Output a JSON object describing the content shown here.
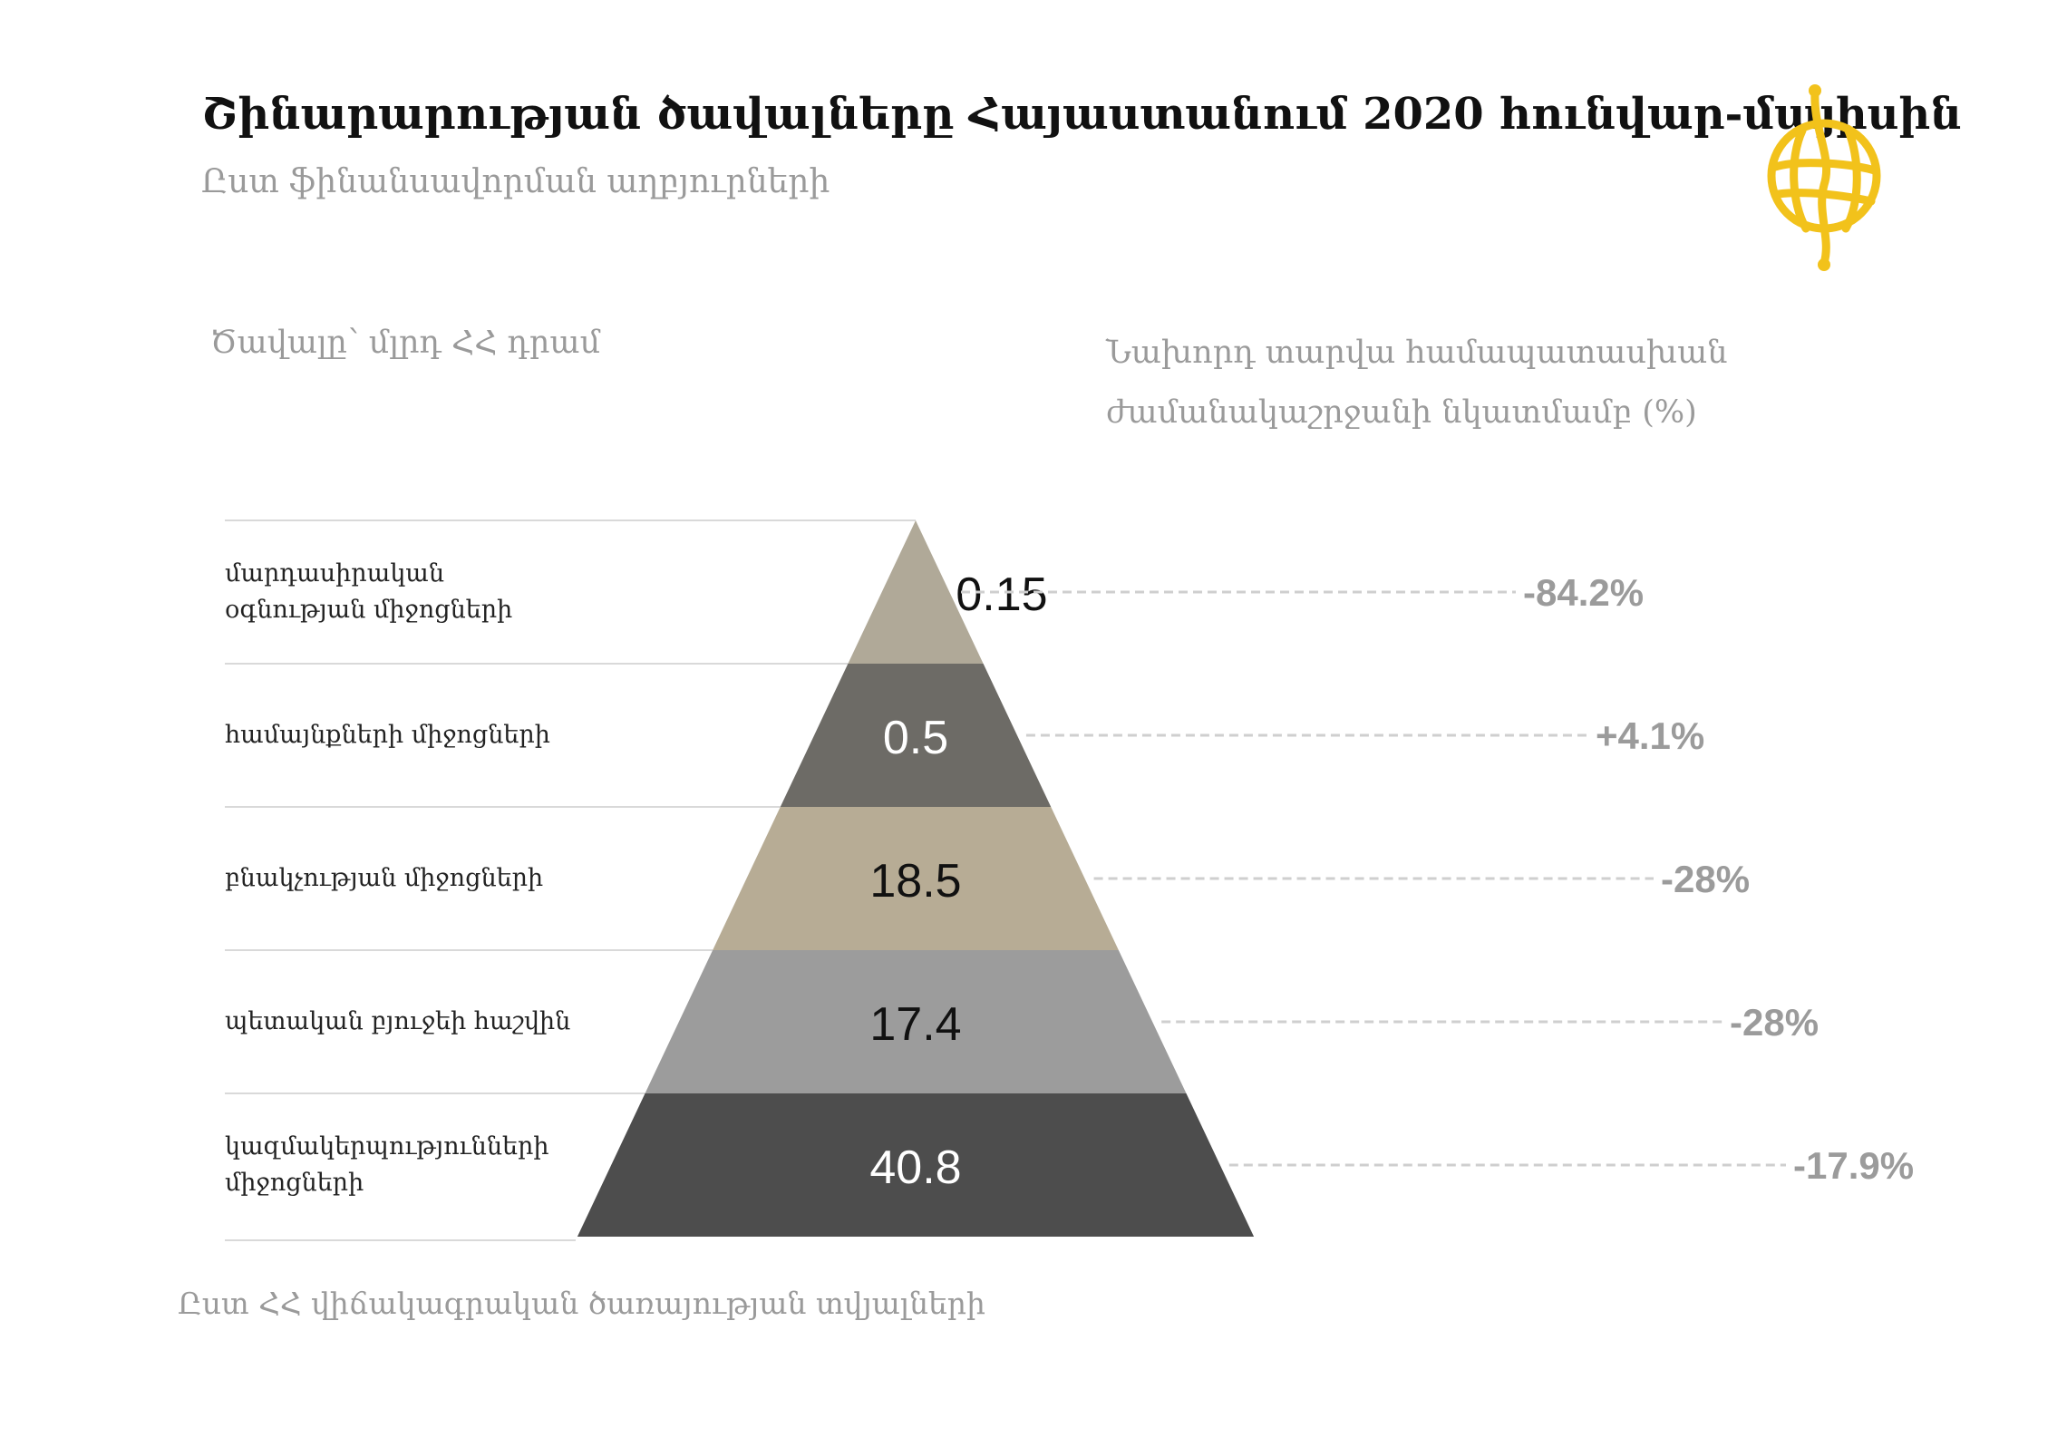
{
  "title": "Շինարարության ծավալները Հայաստանում 2020 հունվար-մայիսին",
  "subtitle": "Ըստ ֆինանսավորման աղբյուրների",
  "unit_label": "Ծավալը՝ մլրդ ՀՀ դրամ",
  "change_label": "Նախորդ տարվա համապատասխան ժամանակաշրջանի նկատմամբ (%)",
  "source": "Ըստ ՀՀ վիճակագրական ծառայության տվյալների",
  "logo": {
    "icon": "globe-logo-icon",
    "color": "#f2c21b"
  },
  "chart_data": {
    "type": "pyramid",
    "categories": [
      "մարդասիրական օգնության միջոցների",
      "համայնքների միջոցների",
      "բնակչության միջոցների",
      "պետական բյուջեի հաշվին",
      "կազմակերպությունների միջոցների"
    ],
    "values": [
      0.15,
      0.5,
      18.5,
      17.4,
      40.8
    ],
    "value_labels": [
      "0.15",
      "0.5",
      "18.5",
      "17.4",
      "40.8"
    ],
    "changes": [
      "-84.2%",
      "+4.1%",
      "-28%",
      "-28%",
      "-17.9%"
    ],
    "colors": [
      "#b0a998",
      "#6d6b66",
      "#b7ac95",
      "#9c9c9c",
      "#4d4d4d"
    ],
    "value_text_colors": [
      "#111111",
      "#ffffff",
      "#111111",
      "#111111",
      "#ffffff"
    ]
  }
}
